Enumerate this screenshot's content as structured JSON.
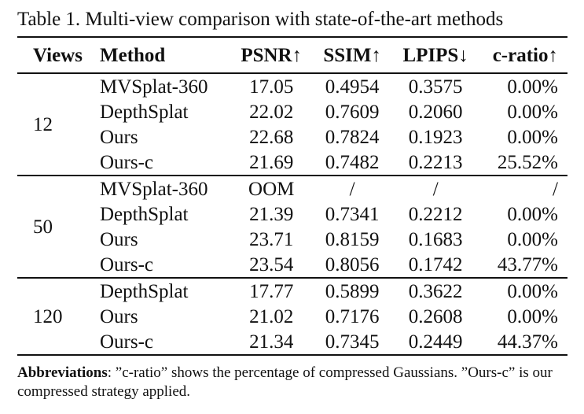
{
  "caption": "Table 1. Multi-view comparison with state-of-the-art methods",
  "table": {
    "headers": [
      "Views",
      "Method",
      "PSNR↑",
      "SSIM↑",
      "LPIPS↓",
      "c-ratio↑"
    ],
    "groups": [
      {
        "views": "12",
        "rows": [
          [
            "MVSplat-360",
            "17.05",
            "0.4954",
            "0.3575",
            "0.00%"
          ],
          [
            "DepthSplat",
            "22.02",
            "0.7609",
            "0.2060",
            "0.00%"
          ],
          [
            "Ours",
            "22.68",
            "0.7824",
            "0.1923",
            "0.00%"
          ],
          [
            "Ours-c",
            "21.69",
            "0.7482",
            "0.2213",
            "25.52%"
          ]
        ]
      },
      {
        "views": "50",
        "rows": [
          [
            "MVSplat-360",
            "OOM",
            "/",
            "/",
            "/"
          ],
          [
            "DepthSplat",
            "21.39",
            "0.7341",
            "0.2212",
            "0.00%"
          ],
          [
            "Ours",
            "23.71",
            "0.8159",
            "0.1683",
            "0.00%"
          ],
          [
            "Ours-c",
            "23.54",
            "0.8056",
            "0.1742",
            "43.77%"
          ]
        ]
      },
      {
        "views": "120",
        "rows": [
          [
            "DepthSplat",
            "17.77",
            "0.5899",
            "0.3622",
            "0.00%"
          ],
          [
            "Ours",
            "21.02",
            "0.7176",
            "0.2608",
            "0.00%"
          ],
          [
            "Ours-c",
            "21.34",
            "0.7345",
            "0.2449",
            "44.37%"
          ]
        ]
      }
    ]
  },
  "footnote": {
    "label": "Abbreviations",
    "text": ": ”c-ratio” shows the percentage of compressed Gaussians. ”Ours-c” is our compressed strategy applied."
  }
}
